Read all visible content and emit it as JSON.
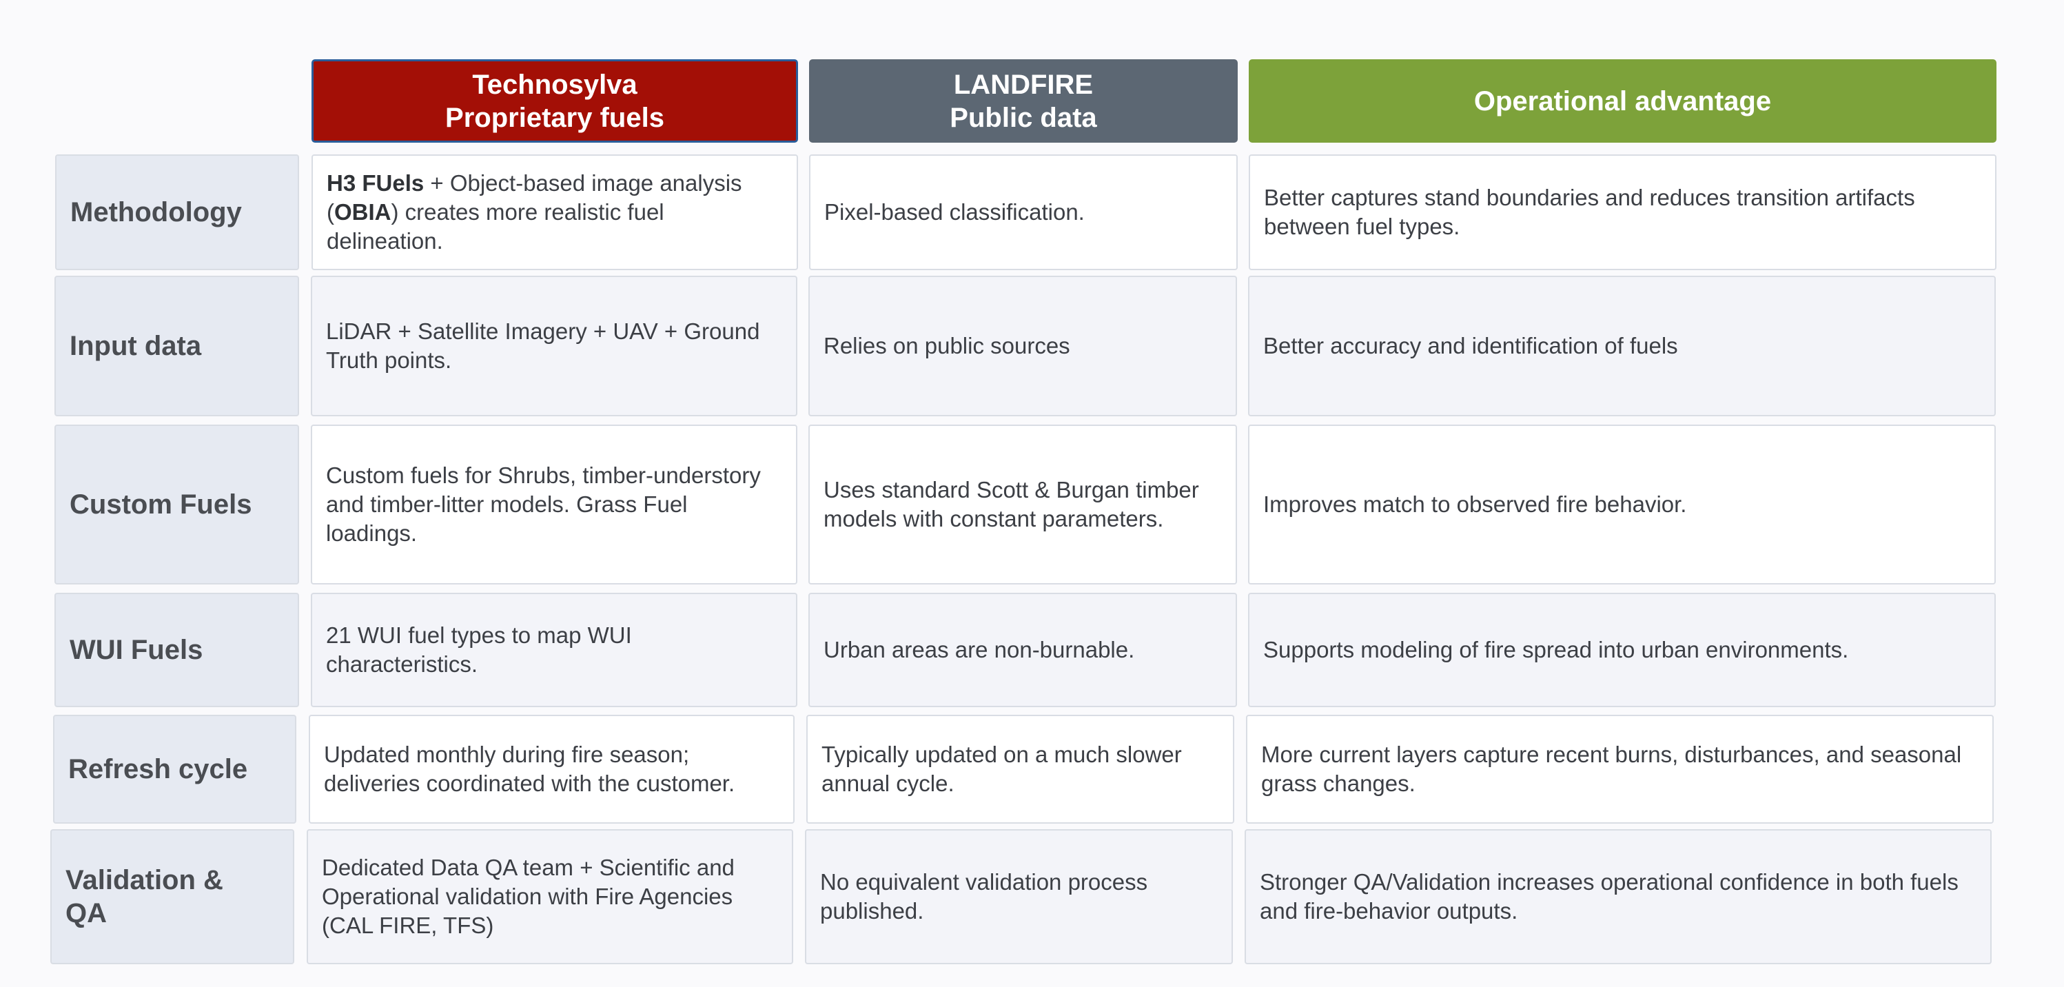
{
  "columns": {
    "technosylva": {
      "line1": "Technosylva",
      "line2": "Proprietary fuels"
    },
    "landfire": {
      "line1": "LANDFIRE",
      "line2": "Public data"
    },
    "operational": {
      "line1": "Operational advantage"
    }
  },
  "rows": [
    {
      "label": "Methodology",
      "technosylva": {
        "bold1": "H3 FUels",
        "text1": " + Object-based image analysis (",
        "bold2": "OBIA",
        "text2": ") creates more realistic fuel delineation."
      },
      "landfire": "Pixel-based classification.",
      "operational": "Better captures stand boundaries and reduces transition artifacts between fuel types."
    },
    {
      "label": "Input data",
      "technosylva": "LiDAR + Satellite Imagery + UAV + Ground Truth points.",
      "landfire": "Relies on public sources",
      "operational": "Better accuracy and identification of fuels"
    },
    {
      "label": "Custom Fuels",
      "technosylva": "Custom fuels for Shrubs, timber-understory and timber-litter models. Grass Fuel loadings.",
      "landfire": "Uses standard Scott & Burgan timber models with constant parameters.",
      "operational": "Improves match to observed fire behavior."
    },
    {
      "label": "WUI Fuels",
      "technosylva": "21 WUI fuel types to map WUI characteristics.",
      "landfire": "Urban areas are non-burnable.",
      "operational": "Supports modeling of fire spread into urban environments."
    },
    {
      "label": "Refresh cycle",
      "technosylva": "Updated monthly during fire season; deliveries coordinated with the customer.",
      "landfire": "Typically updated on a much slower annual cycle.",
      "operational": "More current layers capture recent burns, disturbances, and seasonal grass changes."
    },
    {
      "label": "Validation & QA",
      "technosylva": "Dedicated Data QA team + Scientific and Operational validation with Fire Agencies (CAL FIRE, TFS)",
      "landfire": "No equivalent validation process published.",
      "operational": "Stronger QA/Validation increases operational confidence in both fuels and fire-behavior outputs."
    }
  ]
}
